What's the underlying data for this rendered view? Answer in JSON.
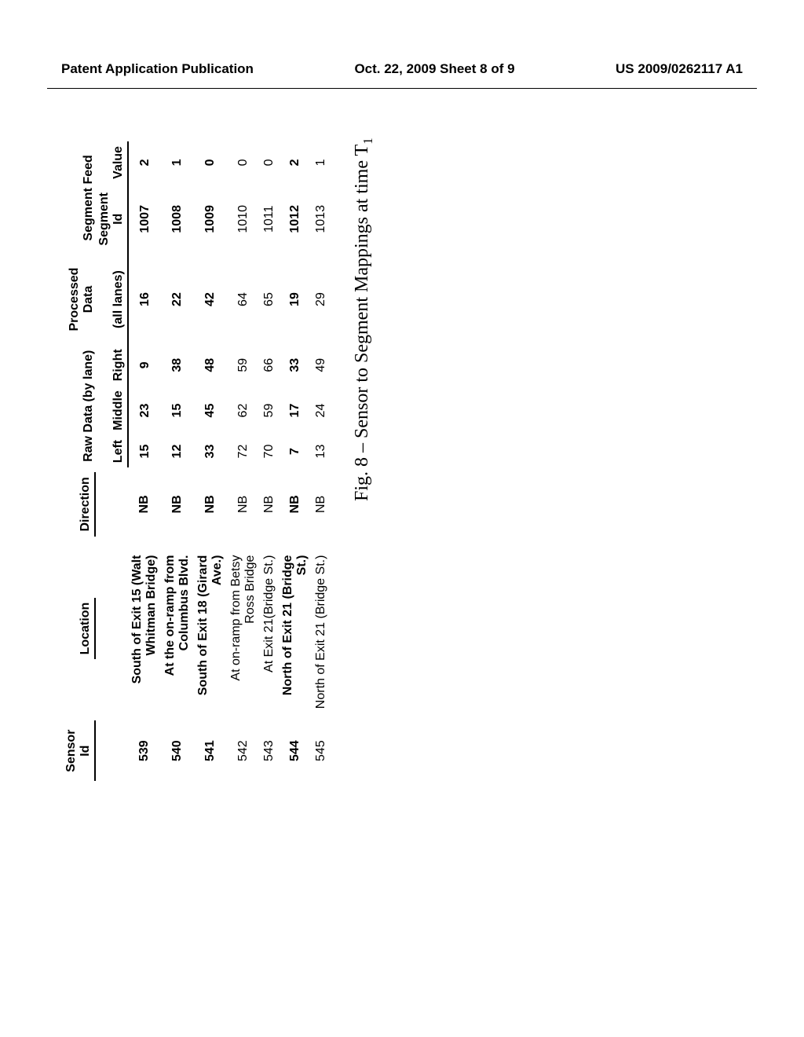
{
  "header": {
    "left": "Patent Application Publication",
    "center": "Oct. 22, 2009  Sheet 8 of 9",
    "right": "US 2009/0262117 A1"
  },
  "table": {
    "groups": {
      "sensor": "Sensor Id",
      "location": "Location",
      "direction": "Direction",
      "raw": "Raw Data (by lane)",
      "processed": "Processed Data",
      "segment": "Segment Feed"
    },
    "sub": {
      "left": "Left",
      "middle": "Middle",
      "right": "Right",
      "all": "(all lanes)",
      "segid": "Segment Id",
      "value": "Value"
    },
    "rows": [
      {
        "bold": true,
        "sensor": "539",
        "loc": "South of Exit 15 (Walt Whitman Bridge)",
        "dir": "NB",
        "l": "15",
        "m": "23",
        "r": "9",
        "all": "16",
        "seg": "1007",
        "val": "2"
      },
      {
        "bold": true,
        "sensor": "540",
        "loc": "At the on-ramp from Columbus Blvd.",
        "dir": "NB",
        "l": "12",
        "m": "15",
        "r": "38",
        "all": "22",
        "seg": "1008",
        "val": "1"
      },
      {
        "bold": true,
        "sensor": "541",
        "loc": "South of Exit 18 (Girard Ave.)",
        "dir": "NB",
        "l": "33",
        "m": "45",
        "r": "48",
        "all": "42",
        "seg": "1009",
        "val": "0"
      },
      {
        "bold": false,
        "sensor": "542",
        "loc": "At on-ramp from Betsy Ross Bridge",
        "dir": "NB",
        "l": "72",
        "m": "62",
        "r": "59",
        "all": "64",
        "seg": "1010",
        "val": "0"
      },
      {
        "bold": false,
        "sensor": "543",
        "loc": "At Exit 21(Bridge St.)",
        "dir": "NB",
        "l": "70",
        "m": "59",
        "r": "66",
        "all": "65",
        "seg": "1011",
        "val": "0"
      },
      {
        "bold": true,
        "sensor": "544",
        "loc": "North of Exit 21 (Bridge St.)",
        "dir": "NB",
        "l": "7",
        "m": "17",
        "r": "33",
        "all": "19",
        "seg": "1012",
        "val": "2"
      },
      {
        "bold": false,
        "sensor": "545",
        "loc": "North of Exit 21 (Bridge St.)",
        "dir": "NB",
        "l": "13",
        "m": "24",
        "r": "49",
        "all": "29",
        "seg": "1013",
        "val": "1"
      }
    ]
  },
  "caption": {
    "prefix": "Fig. 8 – Sensor to Segment Mappings at time T",
    "sub": "1"
  }
}
